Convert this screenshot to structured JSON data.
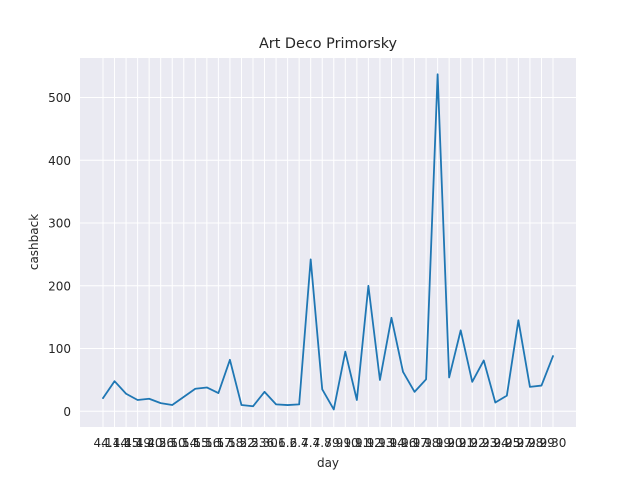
{
  "chart_data": {
    "type": "line",
    "title": "Art Deco Primorsky",
    "xlabel": "day",
    "ylabel": "cashback",
    "x": [
      "4.1",
      "4.14",
      "4.15",
      "4.19",
      "4.20",
      "4.26",
      "5.10",
      "5.14",
      "5.15",
      "5.16",
      "5.17",
      "5.18",
      "5.22",
      "5.23",
      "5.30",
      "6.1",
      "6.2",
      "6.4",
      "7.4",
      "7.8",
      "7.9",
      "9.10",
      "9.11",
      "9.12",
      "9.13",
      "9.14",
      "9.16",
      "9.17",
      "9.18",
      "9.19",
      "9.20",
      "9.21",
      "9.22",
      "9.23",
      "9.24",
      "9.25",
      "9.27",
      "9.28",
      "9.29",
      "9.30"
    ],
    "x_tick_labels_note": "",
    "series": [
      {
        "name": "",
        "color": "#1f77b4",
        "values": [
          21,
          48,
          28,
          18,
          20,
          13,
          10,
          23,
          36,
          38,
          29,
          82,
          10,
          8,
          31,
          11,
          10,
          11,
          242,
          35,
          3,
          95,
          18,
          200,
          50,
          149,
          63,
          31,
          51,
          537,
          54,
          129,
          47,
          81,
          14,
          25,
          145,
          39,
          41,
          88
        ]
      }
    ],
    "ylim": [
      -25,
      563
    ],
    "yticks": [
      0,
      100,
      200,
      300,
      400,
      500
    ],
    "grid": true,
    "background": "#eaeaf2"
  }
}
